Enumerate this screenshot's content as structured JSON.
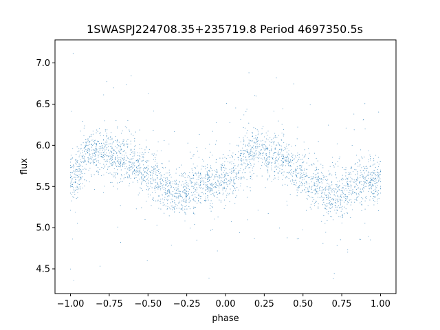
{
  "chart_data": {
    "type": "scatter",
    "title": "1SWASPJ224708.35+235719.8 Period 4697350.5s",
    "xlabel": "phase",
    "ylabel": "flux",
    "xlim": [
      -1.1,
      1.1
    ],
    "ylim": [
      4.2,
      7.28
    ],
    "xticks": [
      -1.0,
      -0.75,
      -0.5,
      -0.25,
      0.0,
      0.25,
      0.5,
      0.75,
      1.0
    ],
    "xtick_labels": [
      "−1.00",
      "−0.75",
      "−0.50",
      "−0.25",
      "0.00",
      "0.25",
      "0.50",
      "0.75",
      "1.00"
    ],
    "yticks": [
      4.5,
      5.0,
      5.5,
      6.0,
      6.5,
      7.0
    ],
    "ytick_labels": [
      "4.5",
      "5.0",
      "5.5",
      "6.0",
      "6.5",
      "7.0"
    ],
    "grid": false,
    "marker_color": "#1f77b4",
    "series": [
      {
        "profile": [
          {
            "x": 0.0,
            "y": 5.6
          },
          {
            "x": 0.05,
            "y": 5.65
          },
          {
            "x": 0.1,
            "y": 5.85
          },
          {
            "x": 0.15,
            "y": 5.9
          },
          {
            "x": 0.2,
            "y": 5.95
          },
          {
            "x": 0.25,
            "y": 5.9
          },
          {
            "x": 0.3,
            "y": 5.85
          },
          {
            "x": 0.35,
            "y": 5.85
          },
          {
            "x": 0.4,
            "y": 5.8
          },
          {
            "x": 0.45,
            "y": 5.7
          },
          {
            "x": 0.5,
            "y": 5.65
          },
          {
            "x": 0.55,
            "y": 5.55
          },
          {
            "x": 0.6,
            "y": 5.55
          },
          {
            "x": 0.65,
            "y": 5.4
          },
          {
            "x": 0.7,
            "y": 5.4
          },
          {
            "x": 0.75,
            "y": 5.4
          },
          {
            "x": 0.8,
            "y": 5.5
          },
          {
            "x": 0.85,
            "y": 5.55
          },
          {
            "x": 0.9,
            "y": 5.55
          },
          {
            "x": 0.95,
            "y": 5.55
          },
          {
            "x": 1.0,
            "y": 5.6
          }
        ],
        "x_range": [
          -1.0,
          1.0
        ],
        "y_range": [
          4.35,
          7.13
        ]
      }
    ]
  }
}
